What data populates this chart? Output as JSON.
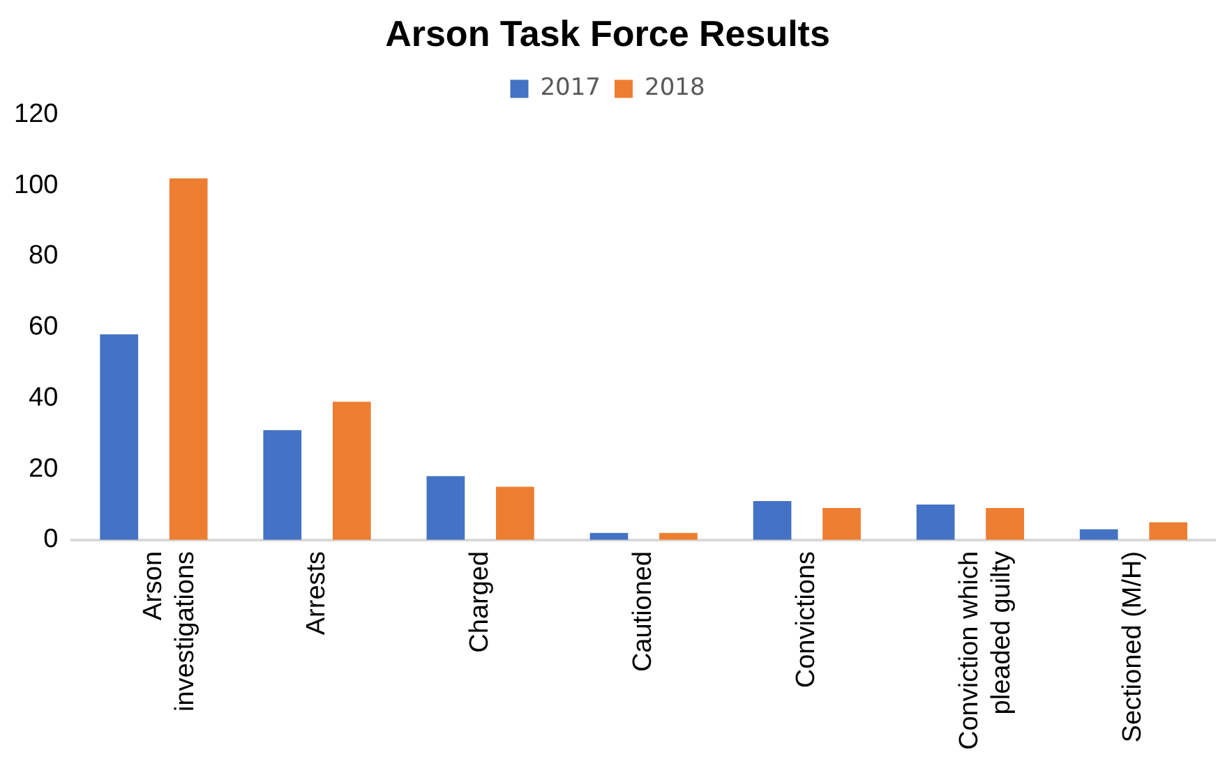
{
  "chart_data": {
    "type": "bar",
    "title": "Arson Task Force Results",
    "categories": [
      "Arson investigations",
      "Arrests",
      "Charged",
      "Cautioned",
      "Convictions",
      "Conviction which pleaded guilty",
      "Sectioned (M/H)"
    ],
    "series": [
      {
        "name": "2017",
        "color": "#4472c4",
        "values": [
          58,
          31,
          18,
          2,
          11,
          10,
          3
        ]
      },
      {
        "name": "2018",
        "color": "#ed7d31",
        "values": [
          102,
          39,
          15,
          2,
          9,
          9,
          5
        ]
      }
    ],
    "ylim": [
      0,
      120
    ],
    "yticks": [
      0,
      20,
      40,
      60,
      80,
      100,
      120
    ],
    "grid": false,
    "legend": "top"
  }
}
